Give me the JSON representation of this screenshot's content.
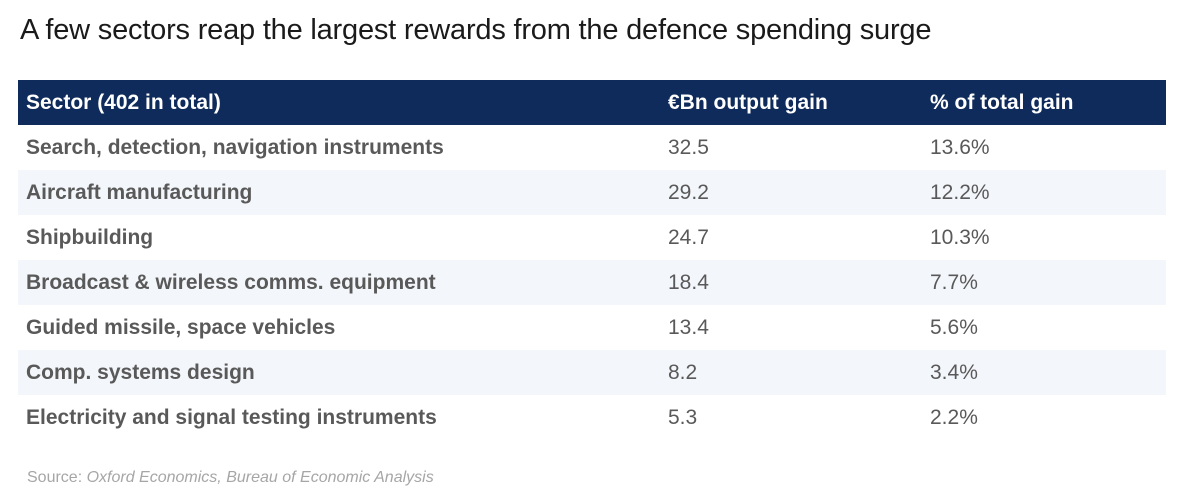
{
  "chart_data": {
    "type": "table",
    "title": "A few sectors reap the largest rewards from the defence spending surge",
    "columns": [
      "Sector (402 in total)",
      "€Bn output gain",
      "% of total gain"
    ],
    "rows": [
      {
        "sector": "Search, detection, navigation instruments",
        "gain": "32.5",
        "pct": "13.6%"
      },
      {
        "sector": "Aircraft manufacturing",
        "gain": "29.2",
        "pct": "12.2%"
      },
      {
        "sector": "Shipbuilding",
        "gain": "24.7",
        "pct": "10.3%"
      },
      {
        "sector": "Broadcast & wireless comms. equipment",
        "gain": "18.4",
        "pct": "7.7%"
      },
      {
        "sector": "Guided missile, space vehicles",
        "gain": "13.4",
        "pct": "5.6%"
      },
      {
        "sector": "Comp. systems design",
        "gain": "8.2",
        "pct": "3.4%"
      },
      {
        "sector": "Electricity and signal testing instruments",
        "gain": "5.3",
        "pct": "2.2%"
      }
    ],
    "source_label": "Source:",
    "source_text": "Oxford Economics, Bureau of Economic Analysis"
  },
  "colors": {
    "header_bg": "#0f2b5b",
    "header_text": "#ffffff",
    "body_text": "#595959",
    "alt_row_bg": "#f3f6fa",
    "source_text": "#a6a6a6"
  }
}
